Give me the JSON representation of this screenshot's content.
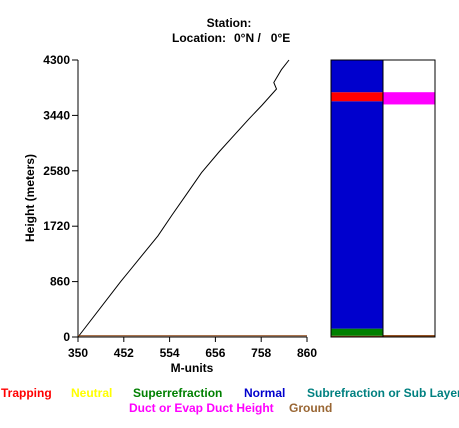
{
  "header": {
    "station_label": "Station:",
    "location_label": "Location:",
    "location_value": "0°N /   0°E"
  },
  "chart_data": {
    "type": "line",
    "xlabel": "M-units",
    "ylabel": "Height (meters)",
    "xlim": [
      350,
      860
    ],
    "ylim": [
      0,
      4300
    ],
    "x_ticks": [
      "350",
      "452",
      "554",
      "656",
      "758",
      "860"
    ],
    "y_ticks": [
      "0",
      "860",
      "1720",
      "2580",
      "3440",
      "4300"
    ],
    "grid": false,
    "series": [
      {
        "color": "#000000",
        "points": [
          [
            350,
            0
          ],
          [
            445,
            860
          ],
          [
            528,
            1570
          ],
          [
            560,
            1900
          ],
          [
            590,
            2200
          ],
          [
            625,
            2550
          ],
          [
            665,
            2880
          ],
          [
            700,
            3150
          ],
          [
            730,
            3380
          ],
          [
            760,
            3600
          ],
          [
            792,
            3850
          ],
          [
            786,
            3950
          ],
          [
            803,
            4150
          ],
          [
            820,
            4300
          ]
        ]
      },
      {
        "color": "#8B4513",
        "points": [
          [
            350,
            20
          ],
          [
            860,
            20
          ]
        ]
      }
    ],
    "condition_columns": [
      {
        "segments": [
          {
            "from": 0,
            "to": 20,
            "color": "#8B4513"
          },
          {
            "from": 20,
            "to": 130,
            "color": "#008000"
          },
          {
            "from": 130,
            "to": 3660,
            "color": "#0000CD"
          },
          {
            "from": 3660,
            "to": 3800,
            "color": "#FF0000"
          },
          {
            "from": 3800,
            "to": 4300,
            "color": "#0000CD"
          }
        ]
      },
      {
        "segments": [
          {
            "from": 0,
            "to": 30,
            "color": "#8B4513"
          },
          {
            "from": 3610,
            "to": 3800,
            "color": "#FF00FF"
          }
        ]
      }
    ],
    "legend": [
      {
        "label": "Trapping",
        "color": "#FF0000"
      },
      {
        "label": "Neutral",
        "color": "#FFFF00"
      },
      {
        "label": "Superrefraction",
        "color": "#008000"
      },
      {
        "label": "Normal",
        "color": "#0000CD"
      },
      {
        "label": "Subrefraction or Sub Layer",
        "color": "#008080"
      },
      {
        "label": "Duct or Evap Duct Height",
        "color": "#FF00FF"
      },
      {
        "label": "Ground",
        "color": "#996633"
      }
    ]
  }
}
